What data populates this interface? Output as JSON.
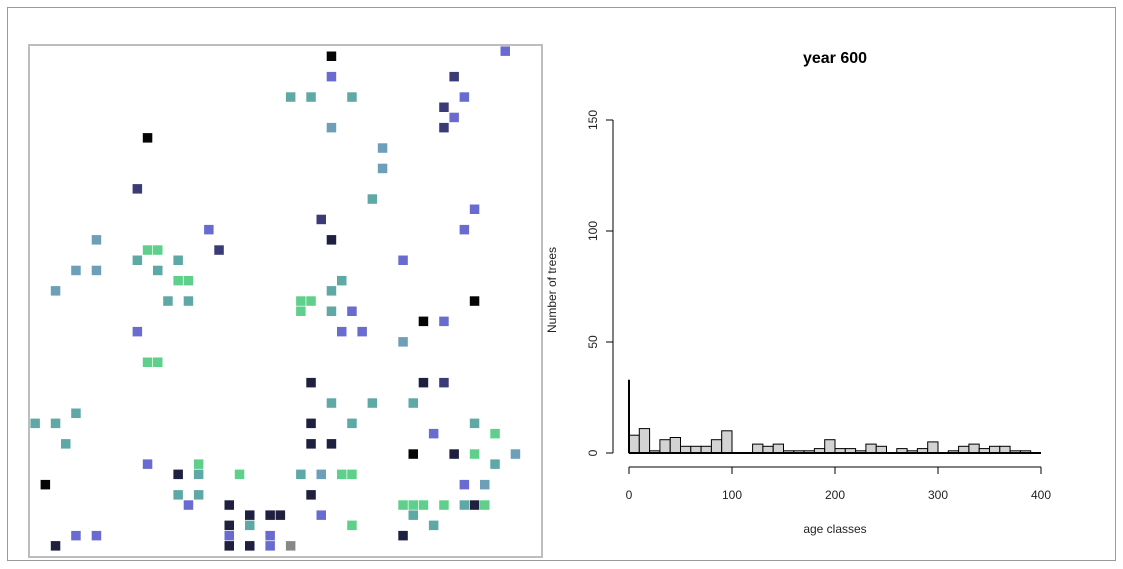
{
  "colors": {
    "age_1": "#5fd08c",
    "age_2": "#5ea9a5",
    "age_3": "#6d9fb8",
    "age_4": "#6a6bd0",
    "age_5": "#3b3b78",
    "age_6": "#1f1f40",
    "age_7": "#050505",
    "bar_fill": "#d3d3d3",
    "bar_stroke": "#000000"
  },
  "chart_data": [
    {
      "type": "scatter",
      "description_of_marks": "colored square tree cells, color encodes age class group",
      "xlim": [
        0,
        50
      ],
      "ylim": [
        0,
        50
      ],
      "points": [
        [
          29.5,
          49
        ],
        [
          46.5,
          49.5
        ],
        [
          29.5,
          47
        ],
        [
          41.5,
          47
        ],
        [
          25.5,
          45
        ],
        [
          27.5,
          45
        ],
        [
          31.5,
          45
        ],
        [
          42.5,
          45
        ],
        [
          40.5,
          44
        ],
        [
          41.5,
          43
        ],
        [
          40.5,
          42
        ],
        [
          29.5,
          42
        ],
        [
          11.5,
          41
        ],
        [
          34.5,
          40
        ],
        [
          34.5,
          38
        ],
        [
          10.5,
          36
        ],
        [
          33.5,
          35
        ],
        [
          43.5,
          34
        ],
        [
          28.5,
          33
        ],
        [
          17.5,
          32
        ],
        [
          42.5,
          32
        ],
        [
          29.5,
          31
        ],
        [
          6.5,
          31
        ],
        [
          18.5,
          30
        ],
        [
          11.5,
          30
        ],
        [
          12.5,
          30
        ],
        [
          14.5,
          29
        ],
        [
          10.5,
          29
        ],
        [
          36.5,
          29
        ],
        [
          4.5,
          28
        ],
        [
          6.5,
          28
        ],
        [
          12.5,
          28
        ],
        [
          14.5,
          27
        ],
        [
          15.5,
          27
        ],
        [
          30.5,
          27
        ],
        [
          2.5,
          26
        ],
        [
          29.5,
          26
        ],
        [
          13.5,
          25
        ],
        [
          15.5,
          25
        ],
        [
          26.5,
          25
        ],
        [
          27.5,
          25
        ],
        [
          43.5,
          25
        ],
        [
          29.5,
          24
        ],
        [
          26.5,
          24
        ],
        [
          31.5,
          24
        ],
        [
          38.5,
          23
        ],
        [
          40.5,
          23
        ],
        [
          10.5,
          22
        ],
        [
          30.5,
          22
        ],
        [
          32.5,
          22
        ],
        [
          36.5,
          21
        ],
        [
          11.5,
          19
        ],
        [
          12.5,
          19
        ],
        [
          27.5,
          17
        ],
        [
          38.5,
          17
        ],
        [
          40.5,
          17
        ],
        [
          29.5,
          15
        ],
        [
          33.5,
          15
        ],
        [
          37.5,
          15
        ],
        [
          4.5,
          14
        ],
        [
          0.5,
          13
        ],
        [
          2.5,
          13
        ],
        [
          27.5,
          13
        ],
        [
          31.5,
          13
        ],
        [
          43.5,
          13
        ],
        [
          39.5,
          12
        ],
        [
          45.5,
          12
        ],
        [
          3.5,
          11
        ],
        [
          27.5,
          11
        ],
        [
          29.5,
          11
        ],
        [
          37.5,
          10
        ],
        [
          41.5,
          10
        ],
        [
          43.5,
          10
        ],
        [
          47.5,
          10
        ],
        [
          11.5,
          9
        ],
        [
          16.5,
          9
        ],
        [
          45.5,
          9
        ],
        [
          14.5,
          8
        ],
        [
          16.5,
          8
        ],
        [
          20.5,
          8
        ],
        [
          26.5,
          8
        ],
        [
          28.5,
          8
        ],
        [
          30.5,
          8
        ],
        [
          31.5,
          8
        ],
        [
          1.5,
          7
        ],
        [
          42.5,
          7
        ],
        [
          44.5,
          7
        ],
        [
          14.5,
          6
        ],
        [
          16.5,
          6
        ],
        [
          27.5,
          6
        ],
        [
          15.5,
          5
        ],
        [
          19.5,
          5
        ],
        [
          36.5,
          5
        ],
        [
          37.5,
          5
        ],
        [
          38.5,
          5
        ],
        [
          40.5,
          5
        ],
        [
          42.5,
          5
        ],
        [
          43.5,
          5
        ],
        [
          44.5,
          5
        ],
        [
          21.5,
          4
        ],
        [
          23.5,
          4
        ],
        [
          24.5,
          4
        ],
        [
          28.5,
          4
        ],
        [
          37.5,
          4
        ],
        [
          31.5,
          3
        ],
        [
          39.5,
          3
        ],
        [
          19.5,
          3
        ],
        [
          21.5,
          3
        ],
        [
          4.5,
          2
        ],
        [
          6.5,
          2
        ],
        [
          19.5,
          2
        ],
        [
          23.5,
          2
        ],
        [
          36.5,
          2
        ],
        [
          2.5,
          1
        ],
        [
          19.5,
          1
        ],
        [
          21.5,
          1
        ],
        [
          23.5,
          1
        ],
        [
          25.5,
          1
        ]
      ],
      "point_age_group": [
        7,
        4,
        4,
        5,
        2,
        2,
        2,
        4,
        5,
        4,
        5,
        3,
        7,
        3,
        3,
        5,
        2,
        4,
        5,
        4,
        4,
        6,
        3,
        5,
        1,
        1,
        2,
        2,
        4,
        3,
        3,
        2,
        1,
        1,
        2,
        3,
        2,
        2,
        2,
        1,
        1,
        7,
        2,
        1,
        4,
        7,
        4,
        4,
        4,
        4,
        3,
        1,
        1,
        6,
        6,
        5,
        2,
        2,
        2,
        2,
        2,
        2,
        6,
        2,
        2,
        4,
        1,
        2,
        6,
        6,
        7,
        6,
        1,
        3,
        4,
        1,
        2,
        6,
        2,
        1,
        2,
        3,
        1,
        1,
        7,
        4,
        3,
        2,
        2,
        6,
        4,
        6,
        1,
        1,
        1,
        1,
        2,
        6,
        1,
        6,
        6,
        6,
        4,
        2,
        1,
        2,
        6,
        2,
        4,
        4,
        4,
        4,
        6,
        6,
        6,
        6,
        4
      ]
    },
    {
      "type": "bar",
      "title": "year 600",
      "xlabel": "age classes",
      "ylabel": "Number of trees",
      "xlim": [
        0,
        400
      ],
      "ylim": [
        0,
        150
      ],
      "xticks": [
        0,
        100,
        200,
        300,
        400
      ],
      "yticks": [
        0,
        50,
        100,
        150
      ],
      "bin_width": 10,
      "spike": {
        "x": 0,
        "value": 33
      },
      "bins": [
        [
          0,
          8
        ],
        [
          10,
          11
        ],
        [
          20,
          1
        ],
        [
          30,
          6
        ],
        [
          40,
          7
        ],
        [
          50,
          3
        ],
        [
          60,
          3
        ],
        [
          70,
          3
        ],
        [
          80,
          6
        ],
        [
          90,
          10
        ],
        [
          100,
          0
        ],
        [
          110,
          0
        ],
        [
          120,
          4
        ],
        [
          130,
          3
        ],
        [
          140,
          4
        ],
        [
          150,
          1
        ],
        [
          160,
          1
        ],
        [
          170,
          1
        ],
        [
          180,
          2
        ],
        [
          190,
          6
        ],
        [
          200,
          2
        ],
        [
          210,
          2
        ],
        [
          220,
          1
        ],
        [
          230,
          4
        ],
        [
          240,
          3
        ],
        [
          250,
          0
        ],
        [
          260,
          2
        ],
        [
          270,
          1
        ],
        [
          280,
          2
        ],
        [
          290,
          5
        ],
        [
          300,
          0
        ],
        [
          310,
          1
        ],
        [
          320,
          3
        ],
        [
          330,
          4
        ],
        [
          340,
          2
        ],
        [
          350,
          3
        ],
        [
          360,
          3
        ],
        [
          370,
          1
        ],
        [
          380,
          1
        ],
        [
          390,
          0
        ]
      ]
    }
  ]
}
